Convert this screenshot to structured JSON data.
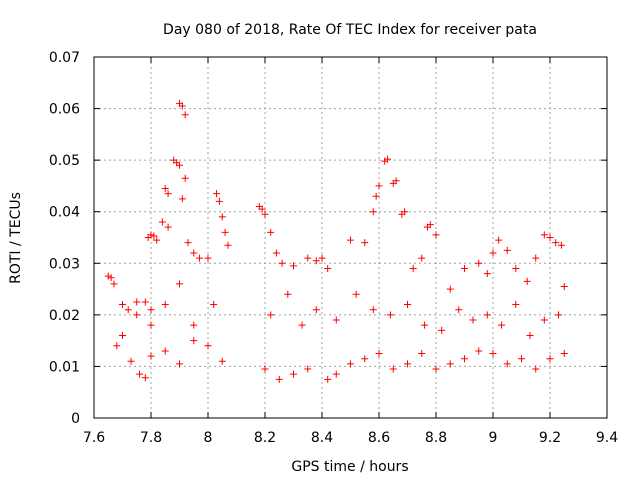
{
  "chart_data": {
    "type": "scatter",
    "title": "Day 080 of 2018, Rate Of TEC Index for receiver pata",
    "xlabel": "GPS time / hours",
    "ylabel": "ROTI / TECUs",
    "xlim": [
      7.6,
      9.4
    ],
    "ylim": [
      0,
      0.07
    ],
    "xticks": [
      "7.6",
      "7.8",
      "8",
      "8.2",
      "8.4",
      "8.6",
      "8.8",
      "9",
      "9.2",
      "9.4"
    ],
    "yticks": [
      "0",
      "0.01",
      "0.02",
      "0.03",
      "0.04",
      "0.05",
      "0.06",
      "0.07"
    ],
    "grid": true,
    "marker": "+",
    "color": "#ff0000",
    "gaps_hours": [
      [
        8.09,
        8.17
      ],
      [
        9.27,
        9.4
      ]
    ],
    "series": [
      {
        "name": "ROTI",
        "points": [
          [
            7.65,
            0.0275
          ],
          [
            7.66,
            0.0272
          ],
          [
            7.67,
            0.026
          ],
          [
            7.7,
            0.022
          ],
          [
            7.72,
            0.021
          ],
          [
            7.75,
            0.0225
          ],
          [
            7.78,
            0.0225
          ],
          [
            7.8,
            0.021
          ],
          [
            7.79,
            0.035
          ],
          [
            7.8,
            0.0355
          ],
          [
            7.81,
            0.0353
          ],
          [
            7.82,
            0.0345
          ],
          [
            7.84,
            0.038
          ],
          [
            7.85,
            0.0445
          ],
          [
            7.86,
            0.0435
          ],
          [
            7.86,
            0.037
          ],
          [
            7.88,
            0.05
          ],
          [
            7.89,
            0.0495
          ],
          [
            7.9,
            0.049
          ],
          [
            7.9,
            0.061
          ],
          [
            7.91,
            0.0605
          ],
          [
            7.92,
            0.0588
          ],
          [
            7.92,
            0.0465
          ],
          [
            7.91,
            0.0425
          ],
          [
            7.93,
            0.034
          ],
          [
            7.95,
            0.032
          ],
          [
            7.97,
            0.031
          ],
          [
            8.0,
            0.031
          ],
          [
            8.03,
            0.0435
          ],
          [
            8.04,
            0.042
          ],
          [
            8.05,
            0.039
          ],
          [
            8.06,
            0.036
          ],
          [
            8.07,
            0.0335
          ],
          [
            8.18,
            0.041
          ],
          [
            8.19,
            0.0405
          ],
          [
            8.2,
            0.0395
          ],
          [
            8.22,
            0.036
          ],
          [
            8.24,
            0.032
          ],
          [
            8.26,
            0.03
          ],
          [
            8.3,
            0.0295
          ],
          [
            8.35,
            0.031
          ],
          [
            8.38,
            0.0305
          ],
          [
            8.4,
            0.031
          ],
          [
            8.42,
            0.029
          ],
          [
            8.5,
            0.0345
          ],
          [
            8.55,
            0.034
          ],
          [
            8.58,
            0.04
          ],
          [
            8.59,
            0.043
          ],
          [
            8.6,
            0.045
          ],
          [
            8.62,
            0.0498
          ],
          [
            8.63,
            0.0502
          ],
          [
            8.65,
            0.0455
          ],
          [
            8.66,
            0.046
          ],
          [
            8.68,
            0.0395
          ],
          [
            8.69,
            0.04
          ],
          [
            8.72,
            0.029
          ],
          [
            8.75,
            0.031
          ],
          [
            8.77,
            0.037
          ],
          [
            8.78,
            0.0375
          ],
          [
            8.8,
            0.0355
          ],
          [
            8.85,
            0.025
          ],
          [
            8.9,
            0.029
          ],
          [
            8.95,
            0.03
          ],
          [
            8.98,
            0.028
          ],
          [
            9.0,
            0.032
          ],
          [
            9.02,
            0.0345
          ],
          [
            9.05,
            0.0325
          ],
          [
            9.08,
            0.029
          ],
          [
            9.12,
            0.0265
          ],
          [
            9.15,
            0.031
          ],
          [
            9.18,
            0.0355
          ],
          [
            9.2,
            0.035
          ],
          [
            9.22,
            0.034
          ],
          [
            9.24,
            0.0335
          ],
          [
            9.25,
            0.0255
          ],
          [
            7.68,
            0.014
          ],
          [
            7.7,
            0.016
          ],
          [
            7.73,
            0.011
          ],
          [
            7.76,
            0.0085
          ],
          [
            7.78,
            0.0078
          ],
          [
            7.8,
            0.012
          ],
          [
            7.85,
            0.013
          ],
          [
            7.9,
            0.0105
          ],
          [
            7.95,
            0.015
          ],
          [
            8.0,
            0.014
          ],
          [
            8.05,
            0.011
          ],
          [
            8.2,
            0.0095
          ],
          [
            8.25,
            0.0075
          ],
          [
            8.3,
            0.0085
          ],
          [
            8.35,
            0.0095
          ],
          [
            8.42,
            0.0075
          ],
          [
            8.45,
            0.0085
          ],
          [
            8.5,
            0.0105
          ],
          [
            8.55,
            0.0115
          ],
          [
            8.6,
            0.0125
          ],
          [
            8.65,
            0.0095
          ],
          [
            8.7,
            0.0105
          ],
          [
            8.75,
            0.0125
          ],
          [
            8.8,
            0.0095
          ],
          [
            8.85,
            0.0105
          ],
          [
            8.9,
            0.0115
          ],
          [
            8.95,
            0.013
          ],
          [
            9.0,
            0.0125
          ],
          [
            9.05,
            0.0105
          ],
          [
            9.1,
            0.0115
          ],
          [
            9.15,
            0.0095
          ],
          [
            9.2,
            0.0115
          ],
          [
            9.25,
            0.0125
          ],
          [
            7.75,
            0.02
          ],
          [
            7.8,
            0.018
          ],
          [
            7.85,
            0.022
          ],
          [
            7.9,
            0.026
          ],
          [
            7.95,
            0.018
          ],
          [
            8.02,
            0.022
          ],
          [
            8.22,
            0.02
          ],
          [
            8.28,
            0.024
          ],
          [
            8.33,
            0.018
          ],
          [
            8.38,
            0.021
          ],
          [
            8.45,
            0.019
          ],
          [
            8.52,
            0.024
          ],
          [
            8.58,
            0.021
          ],
          [
            8.64,
            0.02
          ],
          [
            8.7,
            0.022
          ],
          [
            8.76,
            0.018
          ],
          [
            8.82,
            0.017
          ],
          [
            8.88,
            0.021
          ],
          [
            8.93,
            0.019
          ],
          [
            8.98,
            0.02
          ],
          [
            9.03,
            0.018
          ],
          [
            9.08,
            0.022
          ],
          [
            9.13,
            0.016
          ],
          [
            9.18,
            0.019
          ],
          [
            9.23,
            0.02
          ]
        ]
      }
    ]
  }
}
